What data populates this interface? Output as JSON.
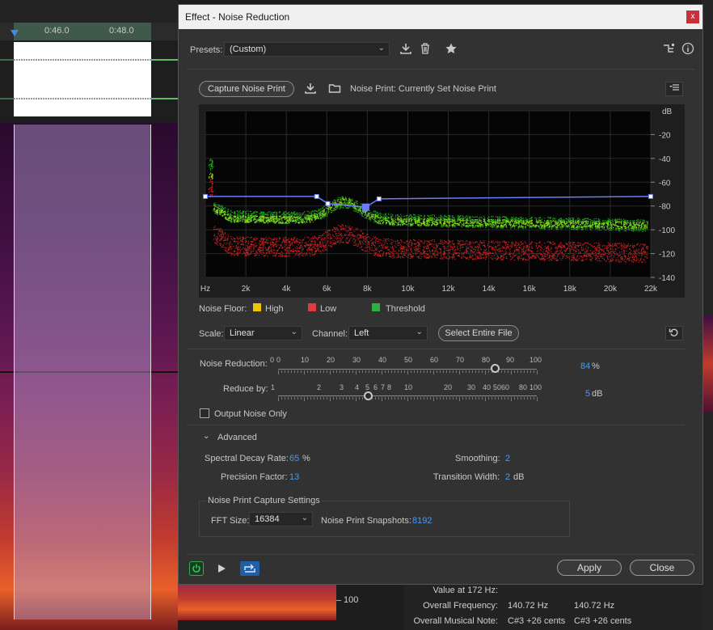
{
  "background": {
    "timeline_labels": [
      "0:46.0",
      "0:48.0"
    ],
    "ruler_label": "100",
    "info_rows": [
      {
        "key": "Value at 172 Hz:",
        "v1": "",
        "v2": ""
      },
      {
        "key": "Overall Frequency:",
        "v1": "140.72 Hz",
        "v2": "140.72 Hz"
      },
      {
        "key": "Overall Musical Note:",
        "v1": "C#3 +26 cents",
        "v2": "C#3 +26 cents"
      }
    ]
  },
  "dialog": {
    "title": "Effect - Noise Reduction",
    "close_glyph": "x",
    "presets_label": "Presets:",
    "presets_value": "(Custom)",
    "capture_button": "Capture Noise Print",
    "noise_print_status": "Noise Print: Currently Set Noise Print",
    "graph": {
      "y_unit": "dB",
      "y_ticks": [
        "-20",
        "-40",
        "-60",
        "-80",
        "-100",
        "-120",
        "-140"
      ],
      "x_ticks": [
        "Hz",
        "2k",
        "4k",
        "6k",
        "8k",
        "10k",
        "12k",
        "14k",
        "16k",
        "18k",
        "20k",
        "22k"
      ]
    },
    "legend": {
      "label": "Noise Floor:",
      "items": [
        {
          "name": "High",
          "color": "#f5c400"
        },
        {
          "name": "Low",
          "color": "#e03c3c"
        },
        {
          "name": "Threshold",
          "color": "#28b43c"
        }
      ]
    },
    "scale_label": "Scale:",
    "scale_value": "Linear",
    "channel_label": "Channel:",
    "channel_value": "Left",
    "select_entire_file": "Select Entire File",
    "noise_reduction": {
      "label": "Noise Reduction:",
      "ticks": [
        "0",
        "0",
        "10",
        "20",
        "30",
        "40",
        "50",
        "60",
        "70",
        "80",
        "90",
        "100"
      ],
      "value": "84",
      "unit": "%",
      "fraction": 0.84
    },
    "reduce_by": {
      "label": "Reduce by:",
      "ticks": [
        "1",
        "2",
        "3",
        "4",
        "5",
        "6",
        "7",
        "8",
        "10",
        "20",
        "30",
        "40",
        "50",
        "60",
        "80",
        "100"
      ],
      "value": "5",
      "unit": "dB"
    },
    "output_noise_only": "Output Noise Only",
    "advanced_label": "Advanced",
    "spectral_decay_label": "Spectral Decay Rate:",
    "spectral_decay_value": "65",
    "spectral_decay_unit": "%",
    "smoothing_label": "Smoothing:",
    "smoothing_value": "2",
    "precision_label": "Precision Factor:",
    "precision_value": "13",
    "transition_label": "Transition Width:",
    "transition_value": "2",
    "transition_unit": "dB",
    "capture_settings_title": "Noise Print Capture Settings",
    "fft_label": "FFT Size:",
    "fft_value": "16384",
    "snapshots_label": "Noise Print Snapshots:",
    "snapshots_value": "8192",
    "apply_button": "Apply",
    "close_button": "Close"
  }
}
